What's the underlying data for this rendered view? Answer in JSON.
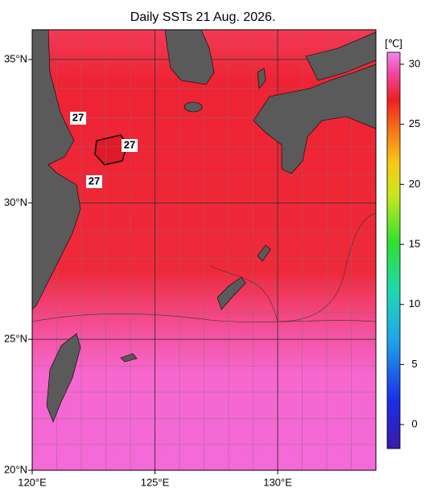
{
  "title": "Daily SSTs 21 Aug. 2026.",
  "map": {
    "lon_lim": [
      120,
      134
    ],
    "lat_lim": [
      20,
      36
    ],
    "lat_ticks": [
      {
        "value": 35,
        "label": "35°N"
      },
      {
        "value": 30,
        "label": "30°N"
      },
      {
        "value": 25,
        "label": "25°N"
      },
      {
        "value": 20,
        "label": "20°N"
      }
    ],
    "lon_ticks": [
      {
        "value": 120,
        "label": "120°E"
      },
      {
        "value": 125,
        "label": "125°E"
      },
      {
        "value": 130,
        "label": "130°E"
      }
    ],
    "contour_labels": [
      "27",
      "27",
      "27"
    ]
  },
  "colorbar": {
    "unit": "[℃]",
    "clim": [
      -2,
      31
    ],
    "ticks": [
      0,
      5,
      10,
      15,
      20,
      25,
      30
    ]
  }
}
